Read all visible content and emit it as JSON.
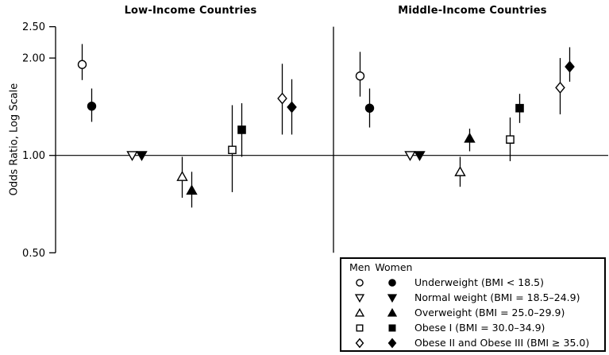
{
  "legend": {
    "men_header": "Men",
    "women_header": "Women",
    "rows": [
      {
        "symbol": "circle",
        "label": "Underweight (BMI < 18.5)"
      },
      {
        "symbol": "triangle-down",
        "label": "Normal weight (BMI = 18.5–24.9)"
      },
      {
        "symbol": "triangle-up",
        "label": "Overweight (BMI = 25.0–29.9)"
      },
      {
        "symbol": "square",
        "label": "Obese I (BMI = 30.0–34.9)"
      },
      {
        "symbol": "diamond",
        "label": "Obese II and Obese III (BMI ≥ 35.0)"
      }
    ]
  },
  "chart_data": {
    "type": "scatter",
    "subtype": "forest-plot-odds-ratios",
    "ylabel": "Odds Ratio, Log Scale",
    "y_scale": "log",
    "ylim": [
      0.5,
      2.5
    ],
    "reference_line": 1.0,
    "grid": false,
    "legend_position": "bottom-right-box",
    "yticks": [
      {
        "value": 2.5,
        "label": "2.50"
      },
      {
        "value": 2.0,
        "label": "2.00"
      },
      {
        "value": 1.0,
        "label": "1.00"
      },
      {
        "value": 0.5,
        "label": "0.50"
      }
    ],
    "categories": [
      "Underweight (BMI < 18.5)",
      "Normal weight (BMI = 18.5–24.9)",
      "Overweight (BMI = 25.0–29.9)",
      "Obese I (BMI = 30.0–34.9)",
      "Obese II and Obese III (BMI ≥ 35.0)"
    ],
    "symbols": [
      "circle",
      "triangle-down",
      "triangle-up",
      "square",
      "diamond"
    ],
    "panels": [
      {
        "title": "Low-Income Countries",
        "series": [
          {
            "name": "Men",
            "fill": "open",
            "points": [
              {
                "or": 1.91,
                "ci_low": 1.71,
                "ci_high": 2.21
              },
              {
                "or": 1.0,
                "ci_low": null,
                "ci_high": null
              },
              {
                "or": 0.86,
                "ci_low": 0.74,
                "ci_high": 0.99
              },
              {
                "or": 1.04,
                "ci_low": 0.77,
                "ci_high": 1.43
              },
              {
                "or": 1.5,
                "ci_low": 1.16,
                "ci_high": 1.92
              }
            ]
          },
          {
            "name": "Women",
            "fill": "solid",
            "points": [
              {
                "or": 1.42,
                "ci_low": 1.27,
                "ci_high": 1.61
              },
              {
                "or": 1.0,
                "ci_low": null,
                "ci_high": null
              },
              {
                "or": 0.78,
                "ci_low": 0.69,
                "ci_high": 0.89
              },
              {
                "or": 1.2,
                "ci_low": 0.99,
                "ci_high": 1.45
              },
              {
                "or": 1.41,
                "ci_low": 1.16,
                "ci_high": 1.72
              }
            ]
          }
        ]
      },
      {
        "title": "Middle-Income Countries",
        "series": [
          {
            "name": "Men",
            "fill": "open",
            "points": [
              {
                "or": 1.76,
                "ci_low": 1.52,
                "ci_high": 2.09
              },
              {
                "or": 1.0,
                "ci_low": null,
                "ci_high": null
              },
              {
                "or": 0.89,
                "ci_low": 0.8,
                "ci_high": 0.99
              },
              {
                "or": 1.12,
                "ci_low": 0.96,
                "ci_high": 1.31
              },
              {
                "or": 1.62,
                "ci_low": 1.34,
                "ci_high": 2.0
              }
            ]
          },
          {
            "name": "Women",
            "fill": "solid",
            "points": [
              {
                "or": 1.4,
                "ci_low": 1.22,
                "ci_high": 1.61
              },
              {
                "or": 1.0,
                "ci_low": null,
                "ci_high": null
              },
              {
                "or": 1.13,
                "ci_low": 1.03,
                "ci_high": 1.21
              },
              {
                "or": 1.4,
                "ci_low": 1.26,
                "ci_high": 1.55
              },
              {
                "or": 1.88,
                "ci_low": 1.69,
                "ci_high": 2.16
              }
            ]
          }
        ]
      }
    ]
  }
}
